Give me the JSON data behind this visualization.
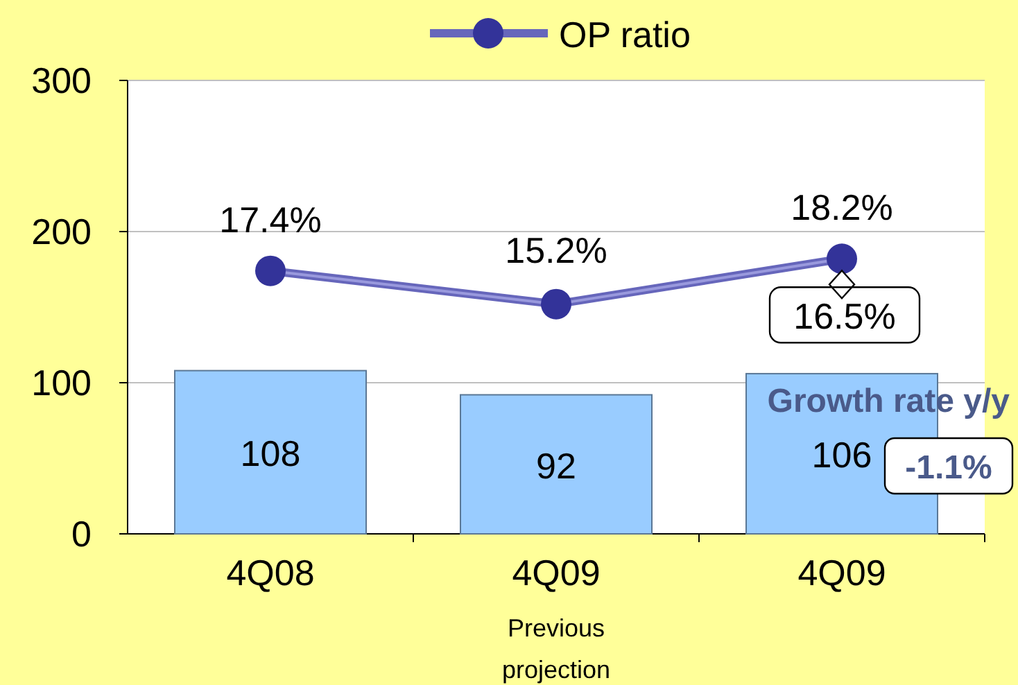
{
  "chart_data": {
    "type": "bar",
    "categories": [
      "4Q08",
      "4Q09",
      "4Q09"
    ],
    "ylim": [
      0,
      300
    ],
    "yticks": [
      0,
      100,
      200,
      300
    ],
    "y2lim": [
      0,
      30
    ],
    "grid": "y",
    "legend": "top",
    "series": [
      {
        "color": "#99ccff",
        "values": [
          108,
          92,
          106
        ],
        "value_labels": [
          "108",
          "92",
          "106"
        ]
      },
      {
        "type": "line",
        "name": "OP ratio",
        "axis": "y2",
        "color": "#333399",
        "marker": "circle",
        "values": [
          17.4,
          15.2,
          18.2
        ],
        "value_labels": [
          "17.4%",
          "15.2%",
          "18.2%"
        ]
      },
      {
        "type": "scatter",
        "axis": "y2",
        "color": "#ffffff",
        "marker": "diamond",
        "values": [
          null,
          null,
          16.5
        ],
        "value_labels": [
          null,
          null,
          "16.5%"
        ]
      }
    ],
    "annotations": [
      "Growth rate y/y",
      "-1.1%",
      "Previous projection"
    ]
  }
}
